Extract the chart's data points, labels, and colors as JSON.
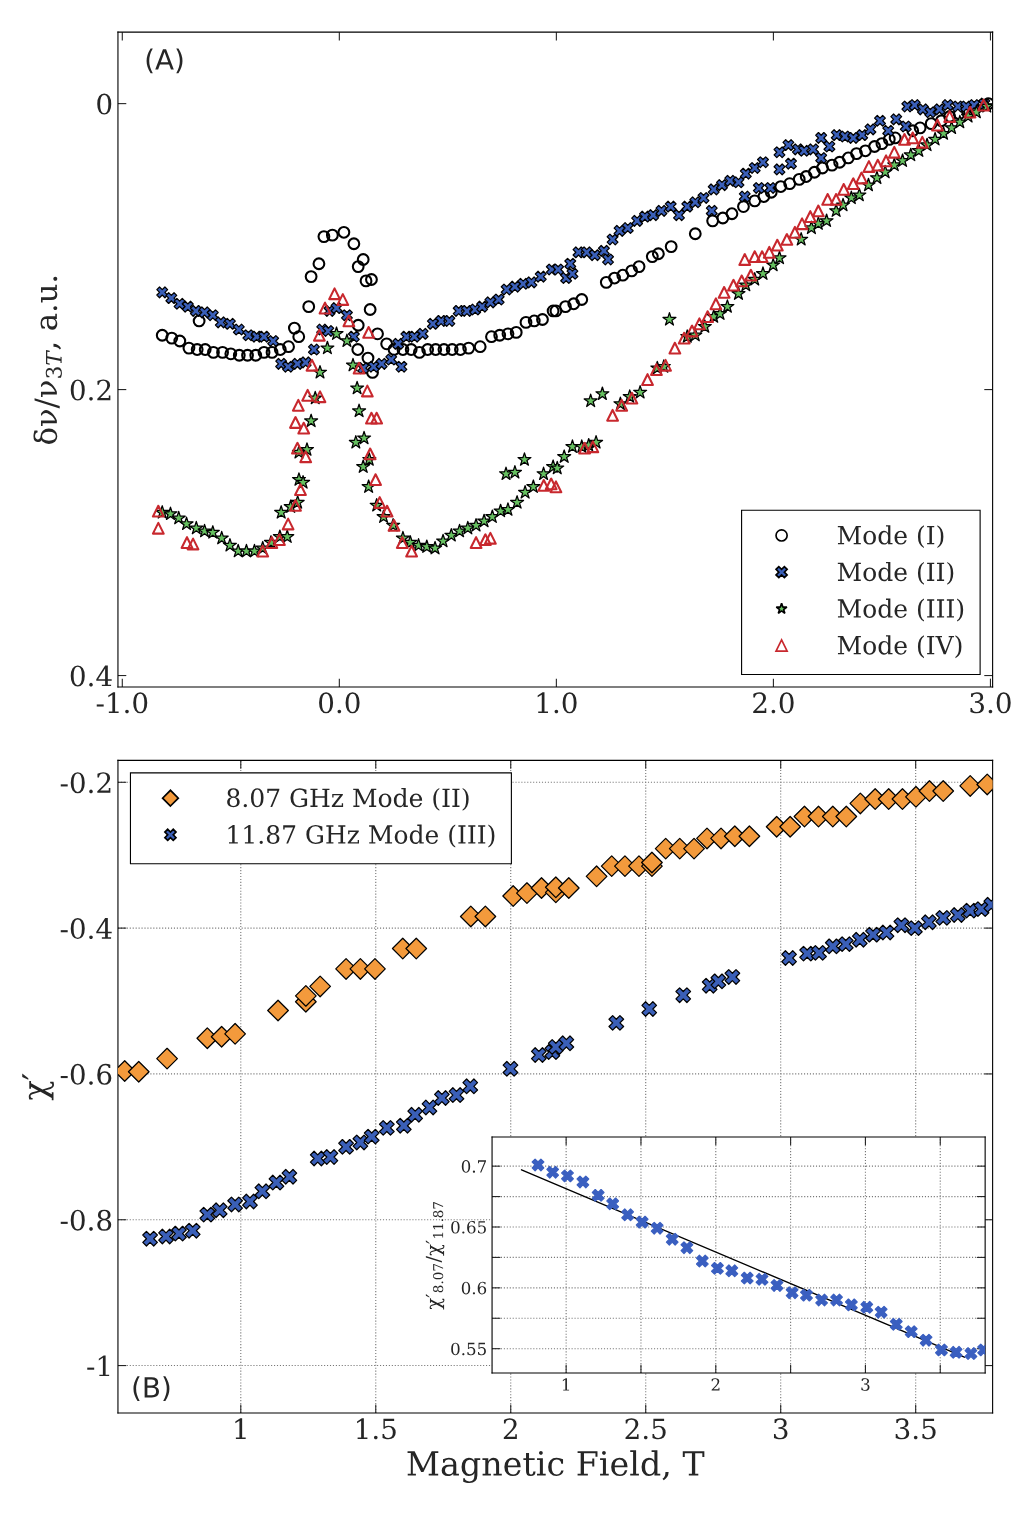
{
  "chart_data": [
    {
      "type": "scatter",
      "annotations": [
        "(A)"
      ],
      "ylabel": "δν/ν$_{3T}$, a.u.",
      "xlim": [
        -1.02,
        3.01
      ],
      "ylim": [
        0.408,
        -0.05
      ],
      "xticks": [
        {
          "value": -1,
          "label": "-1.0"
        },
        {
          "value": 0,
          "label": "0.0"
        },
        {
          "value": 1,
          "label": "1.0"
        },
        {
          "value": 2,
          "label": "2.0"
        },
        {
          "value": 3,
          "label": "3.0"
        }
      ],
      "yticks": [
        0,
        0.2,
        0.4
      ],
      "grid": false,
      "legend": "bottom right",
      "series": [
        {
          "name": "Mode (I)",
          "color": "#000000",
          "marker": "circle",
          "x": [
            -0.816,
            -0.772,
            -0.735,
            -0.693,
            -0.655,
            -0.646,
            -0.618,
            -0.58,
            -0.538,
            -0.5,
            -0.461,
            -0.423,
            -0.385,
            -0.347,
            -0.31,
            -0.272,
            -0.234,
            -0.207,
            -0.187,
            -0.141,
            -0.13,
            -0.094,
            -0.071,
            -0.032,
            0.021,
            0.067,
            0.087,
            0.11,
            0.123,
            0.148,
            0.142,
            0.087,
            0.176,
            0.085,
            0.132,
            0.153,
            0.218,
            0.252,
            0.293,
            0.331,
            0.369,
            0.407,
            0.444,
            0.482,
            0.52,
            0.558,
            0.596,
            0.649,
            0.701,
            0.739,
            0.777,
            0.815,
            0.86,
            0.898,
            0.936,
            0.985,
            0.998,
            1.042,
            1.08,
            1.117,
            1.23,
            1.268,
            1.306,
            1.347,
            1.381,
            1.442,
            1.47,
            1.529,
            1.64,
            1.72,
            1.767,
            1.809,
            1.862,
            1.914,
            1.956,
            1.99,
            2.034,
            2.075,
            2.119,
            2.151,
            2.189,
            2.226,
            2.27,
            2.305,
            2.345,
            2.383,
            2.424,
            2.466,
            2.5,
            2.534,
            2.561,
            2.642,
            2.676,
            2.727,
            2.774,
            2.812,
            2.856,
            2.893,
            2.925,
            2.963,
            2.991
          ],
          "values": [
            0.162,
            0.164,
            0.166,
            0.171,
            0.172,
            0.152,
            0.172,
            0.174,
            0.174,
            0.175,
            0.176,
            0.176,
            0.176,
            0.174,
            0.174,
            0.172,
            0.17,
            0.157,
            0.163,
            0.142,
            0.121,
            0.112,
            0.093,
            0.092,
            0.09,
            0.098,
            0.114,
            0.109,
            0.124,
            0.123,
            0.144,
            0.155,
            0.161,
            0.172,
            0.178,
            0.188,
            0.168,
            0.172,
            0.172,
            0.172,
            0.174,
            0.172,
            0.172,
            0.172,
            0.172,
            0.172,
            0.171,
            0.17,
            0.163,
            0.162,
            0.161,
            0.16,
            0.153,
            0.152,
            0.151,
            0.145,
            0.145,
            0.142,
            0.14,
            0.137,
            0.125,
            0.122,
            0.12,
            0.117,
            0.114,
            0.107,
            0.105,
            0.1,
            0.091,
            0.082,
            0.08,
            0.077,
            0.072,
            0.068,
            0.065,
            0.062,
            0.058,
            0.056,
            0.053,
            0.051,
            0.048,
            0.045,
            0.043,
            0.041,
            0.038,
            0.035,
            0.033,
            0.03,
            0.028,
            0.025,
            0.024,
            0.019,
            0.017,
            0.014,
            0.012,
            0.009,
            0.007,
            0.005,
            0.003,
            0.001,
            0.0
          ]
        },
        {
          "name": "Mode (II)",
          "color": "#3a5fb8",
          "marker": "cross",
          "x": [
            -0.816,
            -0.774,
            -0.736,
            -0.698,
            -0.661,
            -0.621,
            -0.583,
            -0.546,
            -0.504,
            -0.463,
            -0.419,
            -0.381,
            -0.347,
            -0.305,
            -0.268,
            -0.236,
            -0.193,
            -0.155,
            -0.117,
            -0.079,
            -0.045,
            -0.013,
            -0.051,
            0.035,
            0.067,
            0.11,
            0.158,
            0.195,
            0.239,
            0.286,
            0.271,
            0.309,
            0.346,
            0.384,
            0.431,
            0.469,
            0.507,
            0.55,
            0.588,
            0.626,
            0.658,
            0.696,
            0.734,
            0.771,
            0.809,
            0.847,
            0.885,
            0.928,
            0.979,
            1.008,
            1.064,
            1.045,
            1.074,
            1.102,
            1.14,
            1.177,
            1.219,
            1.238,
            1.259,
            1.291,
            1.329,
            1.372,
            1.408,
            1.446,
            1.484,
            1.527,
            1.565,
            1.603,
            1.64,
            1.678,
            1.716,
            1.725,
            1.763,
            1.801,
            1.839,
            1.873,
            1.914,
            1.952,
            1.868,
            1.933,
            1.986,
            2.028,
            2.028,
            2.069,
            2.081,
            2.113,
            2.141,
            2.183,
            2.22,
            2.22,
            2.258,
            2.292,
            2.33,
            2.368,
            2.409,
            2.447,
            2.491,
            2.529,
            2.566,
            2.61,
            2.617,
            2.651,
            2.689,
            2.723,
            2.765,
            2.803,
            2.85,
            2.888,
            2.925,
            2.972
          ],
          "values": [
            0.132,
            0.136,
            0.14,
            0.142,
            0.145,
            0.146,
            0.148,
            0.153,
            0.154,
            0.158,
            0.162,
            0.163,
            0.163,
            0.166,
            0.182,
            0.184,
            0.182,
            0.181,
            0.172,
            0.158,
            0.145,
            0.143,
            0.159,
            0.148,
            0.163,
            0.185,
            0.184,
            0.182,
            0.179,
            0.184,
            0.168,
            0.163,
            0.163,
            0.161,
            0.154,
            0.152,
            0.152,
            0.145,
            0.145,
            0.144,
            0.142,
            0.139,
            0.137,
            0.13,
            0.128,
            0.126,
            0.125,
            0.121,
            0.116,
            0.116,
            0.112,
            0.122,
            0.119,
            0.104,
            0.104,
            0.106,
            0.103,
            0.109,
            0.095,
            0.089,
            0.087,
            0.082,
            0.079,
            0.078,
            0.075,
            0.072,
            0.078,
            0.072,
            0.069,
            0.066,
            0.075,
            0.06,
            0.057,
            0.054,
            0.055,
            0.049,
            0.045,
            0.041,
            0.065,
            0.059,
            0.059,
            0.034,
            0.046,
            0.029,
            0.042,
            0.032,
            0.033,
            0.032,
            0.024,
            0.038,
            0.03,
            0.022,
            0.023,
            0.024,
            0.022,
            0.018,
            0.012,
            0.019,
            0.011,
            0.016,
            0.002,
            0.001,
            0.004,
            0.006,
            0.004,
            0.001,
            0.002,
            0.002,
            0.001,
            0.0
          ]
        },
        {
          "name": "Mode (III)",
          "color": "#66c060",
          "marker": "star",
          "x": [
            -0.816,
            -0.778,
            -0.74,
            -0.704,
            -0.659,
            -0.621,
            -0.583,
            -0.542,
            -0.504,
            -0.466,
            -0.428,
            -0.391,
            -0.353,
            -0.315,
            -0.274,
            -0.24,
            -0.268,
            -0.224,
            -0.192,
            -0.186,
            -0.167,
            -0.186,
            -0.149,
            -0.13,
            -0.111,
            -0.089,
            -0.055,
            -0.013,
            0.035,
            0.063,
            0.082,
            0.091,
            0.076,
            0.114,
            0.11,
            0.138,
            0.135,
            0.172,
            0.204,
            0.248,
            0.293,
            0.327,
            0.365,
            0.403,
            0.441,
            0.478,
            0.516,
            0.554,
            0.592,
            0.63,
            0.667,
            0.705,
            0.743,
            0.777,
            0.819,
            0.856,
            0.894,
            0.941,
            0.985,
            0.768,
            0.809,
            0.853,
            1.004,
            1.036,
            1.074,
            1.117,
            1.149,
            1.183,
            1.158,
            1.212,
            1.295,
            1.338,
            1.386,
            1.465,
            1.495,
            1.521,
            1.603,
            1.64,
            1.684,
            1.725,
            1.754,
            1.788,
            1.839,
            1.873,
            1.914,
            1.952,
            1.999,
            2.028,
            2.128,
            2.175,
            2.207,
            2.245,
            2.289,
            2.321,
            2.359,
            2.396,
            2.438,
            2.477,
            2.515,
            2.557,
            2.595,
            2.633,
            2.67,
            2.708,
            2.745,
            2.784,
            2.821,
            2.859,
            2.897,
            2.935,
            2.983
          ],
          "values": [
            0.286,
            0.287,
            0.29,
            0.294,
            0.297,
            0.299,
            0.3,
            0.304,
            0.309,
            0.313,
            0.313,
            0.313,
            0.311,
            0.307,
            0.303,
            0.303,
            0.286,
            0.282,
            0.279,
            0.263,
            0.265,
            0.244,
            0.242,
            0.222,
            0.206,
            0.188,
            0.171,
            0.161,
            0.166,
            0.183,
            0.199,
            0.215,
            0.237,
            0.234,
            0.254,
            0.249,
            0.268,
            0.281,
            0.289,
            0.295,
            0.304,
            0.307,
            0.309,
            0.31,
            0.311,
            0.306,
            0.302,
            0.299,
            0.297,
            0.295,
            0.292,
            0.289,
            0.285,
            0.284,
            0.279,
            0.272,
            0.268,
            0.259,
            0.254,
            0.259,
            0.258,
            0.249,
            0.255,
            0.247,
            0.24,
            0.24,
            0.239,
            0.237,
            0.208,
            0.203,
            0.21,
            0.205,
            0.202,
            0.185,
            0.184,
            0.151,
            0.163,
            0.162,
            0.156,
            0.149,
            0.147,
            0.142,
            0.133,
            0.127,
            0.123,
            0.119,
            0.113,
            0.108,
            0.095,
            0.087,
            0.084,
            0.082,
            0.075,
            0.071,
            0.066,
            0.064,
            0.057,
            0.052,
            0.048,
            0.043,
            0.04,
            0.036,
            0.033,
            0.029,
            0.025,
            0.021,
            0.017,
            0.013,
            0.009,
            0.006,
            0.002
          ]
        },
        {
          "name": "Mode (IV)",
          "color": "#c8282e",
          "marker": "triangle",
          "x": [
            -0.834,
            -0.834,
            -0.702,
            -0.674,
            -0.353,
            -0.311,
            -0.276,
            -0.236,
            -0.202,
            -0.179,
            -0.155,
            -0.193,
            -0.164,
            -0.202,
            -0.189,
            -0.146,
            -0.089,
            -0.126,
            -0.092,
            -0.066,
            -0.022,
            0.016,
            0.044,
            0.135,
            0.091,
            0.129,
            0.148,
            0.172,
            0.142,
            0.167,
            0.186,
            0.22,
            0.252,
            0.29,
            0.333,
            0.63,
            0.673,
            0.696,
            0.942,
            0.976,
            0.998,
            1.13,
            1.168,
            1.259,
            1.301,
            1.348,
            1.42,
            1.461,
            1.503,
            1.546,
            1.589,
            1.625,
            1.659,
            1.697,
            1.735,
            1.773,
            1.816,
            1.854,
            1.896,
            1.868,
            1.914,
            1.948,
            1.981,
            2.018,
            2.062,
            2.099,
            2.132,
            2.17,
            2.207,
            2.25,
            2.289,
            2.324,
            2.368,
            2.406,
            2.44,
            2.481,
            2.519,
            2.557,
            2.604,
            2.642,
            2.686,
            2.756,
            2.812,
            2.906,
            2.968
          ],
          "values": [
            0.285,
            0.297,
            0.307,
            0.308,
            0.313,
            0.307,
            0.305,
            0.294,
            0.281,
            0.27,
            0.247,
            0.241,
            0.227,
            0.223,
            0.211,
            0.204,
            0.205,
            0.183,
            0.162,
            0.143,
            0.133,
            0.137,
            0.152,
            0.16,
            0.185,
            0.201,
            0.22,
            0.22,
            0.245,
            0.263,
            0.279,
            0.285,
            0.295,
            0.307,
            0.313,
            0.307,
            0.305,
            0.304,
            0.267,
            0.266,
            0.268,
            0.241,
            0.24,
            0.218,
            0.211,
            0.206,
            0.193,
            0.186,
            0.183,
            0.171,
            0.164,
            0.159,
            0.154,
            0.149,
            0.14,
            0.132,
            0.127,
            0.124,
            0.12,
            0.109,
            0.107,
            0.107,
            0.104,
            0.099,
            0.095,
            0.09,
            0.084,
            0.079,
            0.075,
            0.067,
            0.067,
            0.06,
            0.056,
            0.052,
            0.044,
            0.043,
            0.04,
            0.034,
            0.025,
            0.024,
            0.027,
            0.015,
            0.009,
            0.006,
            0.001
          ]
        }
      ]
    },
    {
      "type": "scatter",
      "annotations": [
        "(B)"
      ],
      "xlabel": "Magnetic Field, T",
      "ylabel": "χ′",
      "xlim": [
        0.545,
        3.785
      ],
      "ylim": [
        -1.065,
        -0.17
      ],
      "xticks": [
        1,
        1.5,
        2,
        2.5,
        3,
        3.5
      ],
      "yticks": [
        -0.2,
        -0.4,
        -0.6,
        -0.8,
        -1
      ],
      "grid": true,
      "legend": "top left",
      "series": [
        {
          "name": "8.07 GHz Mode (II)",
          "color": "#f39a3c",
          "marker": "diamond",
          "x": [
            0.57,
            0.622,
            0.727,
            0.876,
            0.929,
            0.979,
            1.138,
            1.241,
            1.241,
            1.294,
            1.39,
            1.443,
            1.497,
            1.6,
            1.65,
            1.852,
            1.906,
            2.009,
            2.06,
            2.114,
            2.167,
            2.167,
            2.215,
            2.318,
            2.374,
            2.423,
            2.475,
            2.523,
            2.523,
            2.574,
            2.626,
            2.679,
            2.727,
            2.779,
            2.83,
            2.884,
            2.985,
            3.035,
            3.088,
            3.14,
            3.193,
            3.243,
            3.295,
            3.35,
            3.4,
            3.451,
            3.501,
            3.551,
            3.602,
            3.702,
            3.765
          ],
          "values": [
            -0.596,
            -0.597,
            -0.579,
            -0.551,
            -0.549,
            -0.545,
            -0.513,
            -0.501,
            -0.493,
            -0.48,
            -0.456,
            -0.456,
            -0.456,
            -0.428,
            -0.428,
            -0.384,
            -0.384,
            -0.356,
            -0.352,
            -0.345,
            -0.351,
            -0.344,
            -0.345,
            -0.329,
            -0.315,
            -0.315,
            -0.315,
            -0.315,
            -0.31,
            -0.291,
            -0.291,
            -0.291,
            -0.277,
            -0.277,
            -0.274,
            -0.274,
            -0.261,
            -0.261,
            -0.247,
            -0.247,
            -0.247,
            -0.247,
            -0.229,
            -0.223,
            -0.223,
            -0.223,
            -0.22,
            -0.212,
            -0.212,
            -0.205,
            -0.203
          ]
        },
        {
          "name": "11.87 GHz Mode (III)",
          "color": "#3a5fb8",
          "marker": "cross",
          "x": [
            0.664,
            0.723,
            0.771,
            0.822,
            0.876,
            0.922,
            0.979,
            1.034,
            1.08,
            1.132,
            1.18,
            1.285,
            1.332,
            1.39,
            1.443,
            1.485,
            1.541,
            1.604,
            1.646,
            1.699,
            1.745,
            1.799,
            1.85,
            1.999,
            2.104,
            2.154,
            2.167,
            2.206,
            2.391,
            2.513,
            2.639,
            2.737,
            2.769,
            2.821,
            3.031,
            3.098,
            3.142,
            3.193,
            3.241,
            3.293,
            3.342,
            3.392,
            3.447,
            3.497,
            3.549,
            3.602,
            3.656,
            3.702,
            3.744,
            3.78
          ],
          "values": [
            -0.826,
            -0.823,
            -0.819,
            -0.815,
            -0.793,
            -0.787,
            -0.779,
            -0.775,
            -0.761,
            -0.749,
            -0.741,
            -0.716,
            -0.714,
            -0.7,
            -0.694,
            -0.686,
            -0.674,
            -0.671,
            -0.656,
            -0.646,
            -0.633,
            -0.629,
            -0.617,
            -0.593,
            -0.574,
            -0.57,
            -0.563,
            -0.558,
            -0.53,
            -0.511,
            -0.492,
            -0.479,
            -0.473,
            -0.467,
            -0.441,
            -0.435,
            -0.434,
            -0.425,
            -0.422,
            -0.416,
            -0.409,
            -0.406,
            -0.396,
            -0.4,
            -0.392,
            -0.386,
            -0.382,
            -0.376,
            -0.374,
            -0.368
          ]
        }
      ]
    },
    {
      "type": "scatter",
      "ylabel": "χ′$_{8.07}$/χ′$_{11.87}$",
      "xlim": [
        0.505,
        3.8
      ],
      "ylim": [
        0.53,
        0.724
      ],
      "xticks": [
        1,
        {
          "value": 1.5,
          "label": null
        },
        2,
        {
          "value": 2.5,
          "label": null
        },
        3,
        {
          "value": 3.5,
          "label": null
        }
      ],
      "yticks": [
        0.55,
        {
          "value": 0.575,
          "label": null
        },
        0.6,
        {
          "value": 0.625,
          "label": null
        },
        0.65,
        {
          "value": 0.675,
          "label": null
        },
        0.7
      ],
      "grid": true,
      "series": [
        {
          "color": "#3a5fc0",
          "marker": "cross",
          "x": [
            0.812,
            0.91,
            1.009,
            1.112,
            1.214,
            1.311,
            1.411,
            1.508,
            1.608,
            1.709,
            1.807,
            1.91,
            2.011,
            2.107,
            2.21,
            2.309,
            2.409,
            2.51,
            2.606,
            2.707,
            2.807,
            2.906,
            3.009,
            3.105,
            3.206,
            3.306,
            3.405,
            3.508,
            3.606,
            3.705,
            3.79
          ],
          "values": [
            0.701,
            0.695,
            0.692,
            0.687,
            0.676,
            0.669,
            0.66,
            0.654,
            0.649,
            0.64,
            0.633,
            0.622,
            0.616,
            0.614,
            0.608,
            0.607,
            0.602,
            0.596,
            0.594,
            0.59,
            0.59,
            0.586,
            0.584,
            0.58,
            0.57,
            0.564,
            0.557,
            0.549,
            0.547,
            0.546,
            0.549
          ]
        },
        {
          "type": "line",
          "color": "#000000",
          "marker": "none",
          "line_style": "solid",
          "x": [
            0.702,
            3.661
          ],
          "values": [
            0.697,
            0.543
          ]
        }
      ]
    }
  ]
}
